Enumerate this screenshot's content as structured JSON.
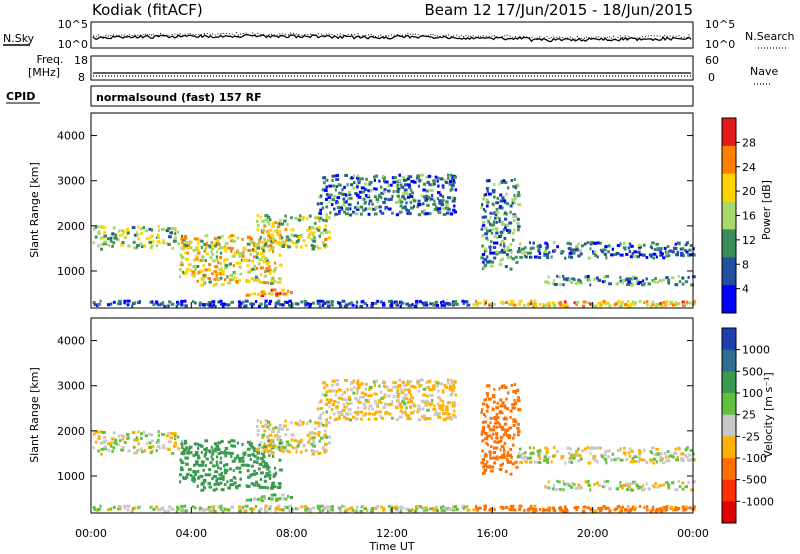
{
  "header": {
    "title_left": "Kodiak (fitACF)",
    "title_right": "Beam 12  17/Jun/2015 - 18/Jun/2015"
  },
  "noise_panel": {
    "left_label": "N.Sky",
    "left_ticks": [
      "10^5",
      "10^0"
    ],
    "right_ticks": [
      "10^5",
      "10^0"
    ],
    "right_label": "N.Search",
    "right_legend_style": "dotted"
  },
  "freq_panel": {
    "left_label_line1": "Freq.",
    "left_label_line2": "[MHz]",
    "left_ticks": [
      "18",
      "8"
    ],
    "right_ticks": [
      "60",
      "0"
    ],
    "right_label": "Nave",
    "right_legend_style": "dotted"
  },
  "cpid_panel": {
    "left_label": "CPID",
    "text": "normalsound (fast) 157 RF"
  },
  "x_axis": {
    "label": "Time UT",
    "ticks": [
      "00:00",
      "04:00",
      "08:00",
      "12:00",
      "16:00",
      "20:00",
      "00:00"
    ]
  },
  "power_panel": {
    "ylabel": "Slant Range [km]",
    "yticks": [
      "4000",
      "3000",
      "2000",
      "1000"
    ],
    "colorbar_label": "Power [dB]",
    "colorbar_ticks": [
      "28",
      "24",
      "20",
      "16",
      "12",
      "8",
      "4"
    ],
    "colorbar_colors": [
      "#e41a1c",
      "#ff7f00",
      "#ffd400",
      "#a6d96a",
      "#3a8c5a",
      "#2450a0",
      "#0000ff"
    ]
  },
  "velocity_panel": {
    "ylabel": "Slant Range [km]",
    "yticks": [
      "4000",
      "3000",
      "2000",
      "1000"
    ],
    "colorbar_label": "Velocity [m s⁻¹]",
    "colorbar_ticks": [
      "1000",
      "500",
      "100",
      "25",
      "-25",
      "-100",
      "-500",
      "-1000"
    ],
    "colorbar_colors": [
      "#1f3fb0",
      "#2e6e8e",
      "#3a9a50",
      "#60c040",
      "#c8c8c8",
      "#ffb000",
      "#ff7000",
      "#ff3000",
      "#e00000"
    ]
  },
  "chart_data": {
    "type": "heatmap",
    "x_range": [
      "00:00",
      "24:00"
    ],
    "ylim": [
      180,
      4500
    ],
    "panels": [
      "Power [dB]",
      "Velocity [m s⁻¹]"
    ],
    "power_scale": [
      0,
      30
    ],
    "velocity_scale": [
      -1000,
      1000
    ],
    "scatter_regions": [
      {
        "t_start": 0.0,
        "t_end": 3.8,
        "range_start": 1450,
        "range_end": 1950,
        "power_dB": 14,
        "velocity": 0
      },
      {
        "t_start": 3.5,
        "t_end": 7.5,
        "range_start": 650,
        "range_end": 1750,
        "power_dB": 18,
        "velocity": 200
      },
      {
        "t_start": 6.0,
        "t_end": 8.0,
        "range_start": 400,
        "range_end": 550,
        "power_dB": 22,
        "velocity": 60
      },
      {
        "t_start": 6.5,
        "t_end": 9.5,
        "range_start": 1450,
        "range_end": 2200,
        "power_dB": 16,
        "velocity": -20
      },
      {
        "t_start": 9.0,
        "t_end": 14.5,
        "range_start": 2200,
        "range_end": 3100,
        "power_dB": 8,
        "velocity": -30
      },
      {
        "t_start": 15.5,
        "t_end": 17.0,
        "range_start": 1000,
        "range_end": 3000,
        "power_dB": 10,
        "velocity": -300
      },
      {
        "t_start": 17.0,
        "t_end": 24.0,
        "range_start": 1250,
        "range_end": 1600,
        "power_dB": 7,
        "velocity": 0
      },
      {
        "t_start": 18.0,
        "t_end": 24.0,
        "range_start": 650,
        "range_end": 850,
        "power_dB": 10,
        "velocity": 10
      },
      {
        "t_start": 15.0,
        "t_end": 24.0,
        "range_start": 180,
        "range_end": 300,
        "power_dB": 20,
        "velocity": -150
      },
      {
        "t_start": 0.0,
        "t_end": 15.0,
        "range_start": 180,
        "range_end": 300,
        "power_dB": 6,
        "velocity": 20
      }
    ]
  }
}
